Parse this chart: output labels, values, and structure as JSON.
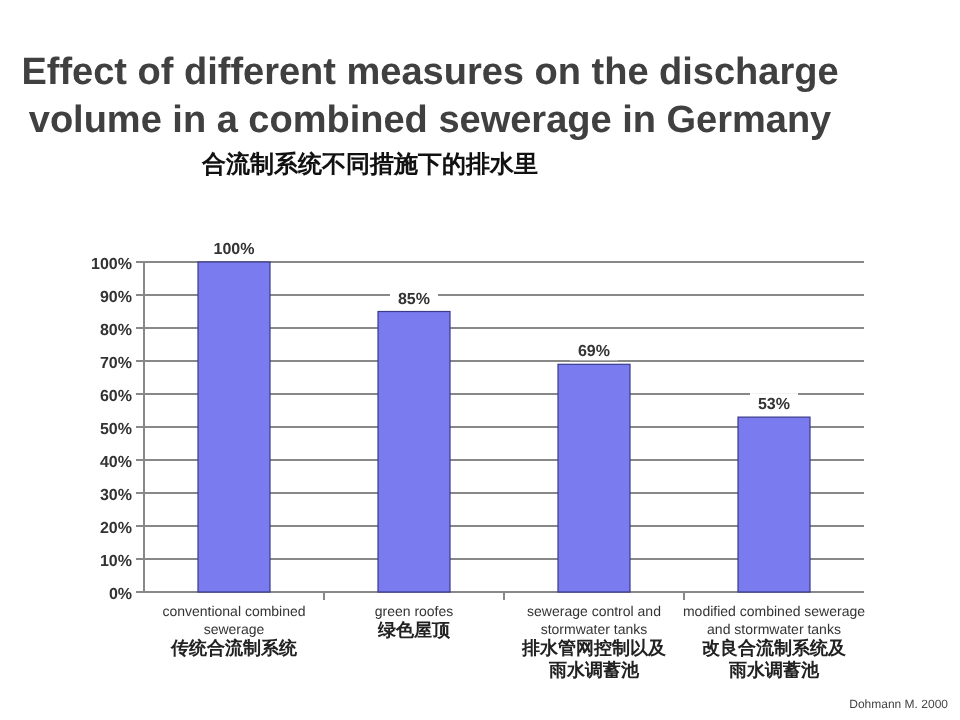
{
  "chart_data": {
    "type": "bar",
    "title": "Effect of different measures on the discharge volume in a combined sewerage in Germany",
    "subtitle": "合流制系统不同措施下的排水里",
    "categories": [
      "conventional combined sewerage\n传统合流制系统",
      "green roofes\n绿色屋顶",
      "sewerage control and stormwater tanks\n排水管网控制以及雨水调蓄池",
      "modified combined sewerage and stormwater tanks\n改良合流制系统及雨水调蓄池"
    ],
    "values": [
      100,
      85,
      69,
      53
    ],
    "value_labels": [
      "100%",
      "85%",
      "69%",
      "53%"
    ],
    "color": "#7b7bf0",
    "ylim": [
      0,
      100
    ],
    "yticks": [
      {
        "value": 0,
        "label": "0%"
      },
      {
        "value": 10,
        "label": "10%"
      },
      {
        "value": 20,
        "label": "20%"
      },
      {
        "value": 30,
        "label": "30%"
      },
      {
        "value": 40,
        "label": "40%"
      },
      {
        "value": 50,
        "label": "50%"
      },
      {
        "value": 60,
        "label": "60%"
      },
      {
        "value": 70,
        "label": "70%"
      },
      {
        "value": 80,
        "label": "80%"
      },
      {
        "value": 90,
        "label": "90%"
      },
      {
        "value": 100,
        "label": "100%"
      }
    ],
    "grid": "y",
    "annotations": [
      "Dohmann M. 2000"
    ]
  }
}
